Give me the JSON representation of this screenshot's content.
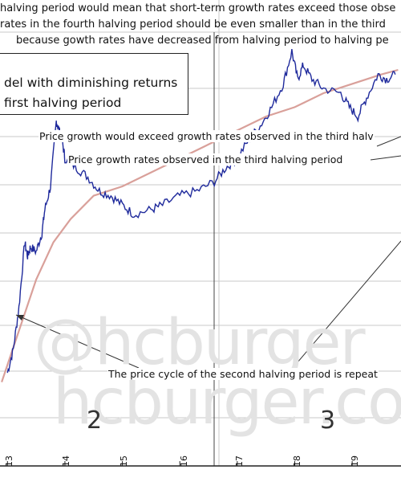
{
  "header_text": [
    "halving period would mean that short-term growth rates exceed those obse",
    "rates in the fourth halving period should be even smaller than in the third",
    "because gowth rates have decreased from halving period to halving pe"
  ],
  "legend": {
    "line1": "del with diminishing returns",
    "line2": "first halving period"
  },
  "annotations": {
    "growth_exceed": "Price growth would exceed growth rates observed in the third halv",
    "third_period": "Price growth rates observed in the third halving period",
    "cycle_repeat": "The price cycle of the second halving period is repeat"
  },
  "period_labels": [
    "2",
    "3"
  ],
  "watermark": [
    "@hcburger",
    "hcburger.co"
  ],
  "colors": {
    "price_line": "#1f2a9c",
    "model_curve": "#d9a09a",
    "grid": "#c9c9c9",
    "frame": "#222222"
  },
  "chart_data": {
    "type": "line",
    "title": "",
    "xlabel": "",
    "ylabel": "",
    "x_tick_labels": [
      "13",
      "14",
      "15",
      "16",
      "17",
      "18",
      "19"
    ],
    "series": [
      {
        "values": [
          [
            2013.0,
            0.2
          ],
          [
            2013.1,
            0.25
          ],
          [
            2013.2,
            0.34
          ],
          [
            2013.3,
            0.48
          ],
          [
            2013.35,
            0.45
          ],
          [
            2013.4,
            0.47
          ],
          [
            2013.5,
            0.46
          ],
          [
            2013.6,
            0.5
          ],
          [
            2013.65,
            0.55
          ],
          [
            2013.75,
            0.6
          ],
          [
            2013.85,
            0.74
          ],
          [
            2013.9,
            0.72
          ],
          [
            2013.95,
            0.7
          ],
          [
            2014.0,
            0.66
          ],
          [
            2014.2,
            0.64
          ],
          [
            2014.4,
            0.62
          ],
          [
            2014.6,
            0.59
          ],
          [
            2014.8,
            0.58
          ],
          [
            2015.0,
            0.56
          ],
          [
            2015.2,
            0.54
          ],
          [
            2015.5,
            0.55
          ],
          [
            2015.7,
            0.56
          ],
          [
            2016.0,
            0.58
          ],
          [
            2016.3,
            0.59
          ],
          [
            2016.6,
            0.61
          ],
          [
            2016.8,
            0.64
          ],
          [
            2017.0,
            0.66
          ],
          [
            2017.2,
            0.7
          ],
          [
            2017.4,
            0.73
          ],
          [
            2017.6,
            0.77
          ],
          [
            2017.8,
            0.82
          ],
          [
            2017.95,
            0.89
          ],
          [
            2018.05,
            0.83
          ],
          [
            2018.15,
            0.86
          ],
          [
            2018.3,
            0.83
          ],
          [
            2018.5,
            0.81
          ],
          [
            2018.8,
            0.8
          ],
          [
            2018.95,
            0.77
          ],
          [
            2019.1,
            0.75
          ],
          [
            2019.25,
            0.79
          ],
          [
            2019.45,
            0.84
          ],
          [
            2019.6,
            0.83
          ],
          [
            2019.75,
            0.84
          ]
        ]
      },
      {
        "values": [
          [
            2012.9,
            0.18
          ],
          [
            2013.2,
            0.29
          ],
          [
            2013.5,
            0.4
          ],
          [
            2013.8,
            0.48
          ],
          [
            2014.1,
            0.53
          ],
          [
            2014.5,
            0.58
          ],
          [
            2015.0,
            0.6
          ],
          [
            2015.5,
            0.63
          ],
          [
            2016.0,
            0.66
          ],
          [
            2016.5,
            0.69
          ],
          [
            2017.0,
            0.72
          ],
          [
            2017.5,
            0.75
          ],
          [
            2018.0,
            0.77
          ],
          [
            2018.5,
            0.8
          ],
          [
            2019.0,
            0.82
          ],
          [
            2019.5,
            0.84
          ],
          [
            2019.8,
            0.85
          ]
        ]
      }
    ],
    "x_range": [
      2012.87,
      2019.85
    ],
    "y_range": [
      0.0,
      1.0
    ],
    "grid": true
  }
}
